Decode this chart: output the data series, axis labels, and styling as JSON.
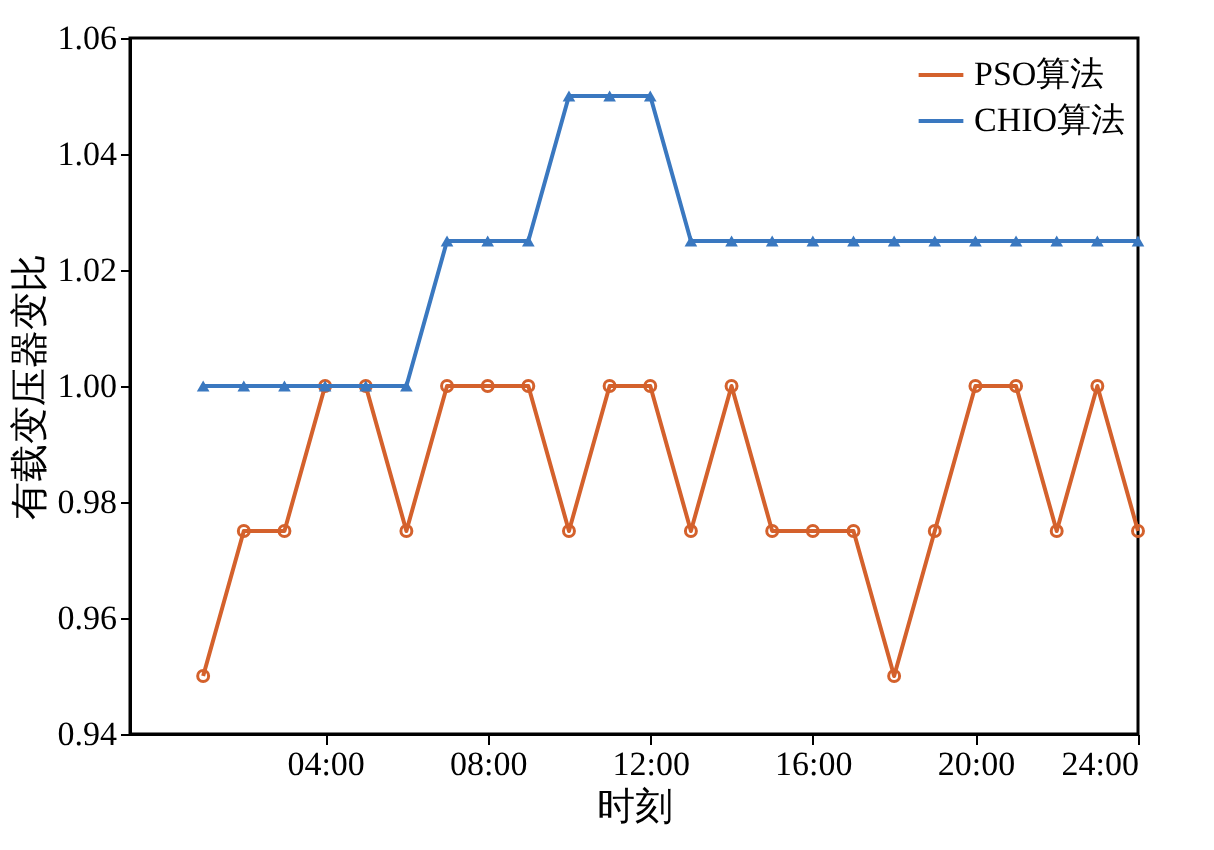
{
  "chart_data": {
    "type": "line",
    "xlabel": "时刻",
    "ylabel": "有载变压器变比",
    "x": [
      1,
      2,
      3,
      4,
      5,
      6,
      7,
      8,
      9,
      10,
      11,
      12,
      13,
      14,
      15,
      16,
      17,
      18,
      19,
      20,
      21,
      22,
      23,
      24
    ],
    "xlim": [
      -0.8,
      24
    ],
    "xticks": [
      {
        "value": 4,
        "label": "04:00"
      },
      {
        "value": 8,
        "label": "08:00"
      },
      {
        "value": 12,
        "label": "12:00"
      },
      {
        "value": 16,
        "label": "16:00"
      },
      {
        "value": 20,
        "label": "20:00"
      },
      {
        "value": 24,
        "label": "24:00"
      }
    ],
    "ylim": [
      0.94,
      1.06
    ],
    "yticks": [
      0.94,
      0.96,
      0.98,
      {
        "value": 1,
        "label": "1.00"
      },
      1.02,
      1.04,
      1.06
    ],
    "grid": false,
    "legend": "top right",
    "series": [
      {
        "name": "PSO算法",
        "color": "#d4612c",
        "marker": "circle",
        "values": [
          0.95,
          0.975,
          0.975,
          1.0,
          1.0,
          0.975,
          1.0,
          1.0,
          1.0,
          0.975,
          1.0,
          1.0,
          0.975,
          1.0,
          0.975,
          0.975,
          0.975,
          0.95,
          0.975,
          1.0,
          1.0,
          0.975,
          1.0,
          0.975
        ]
      },
      {
        "name": "CHIO算法",
        "color": "#3a78c0",
        "marker": "triangle",
        "values": [
          1.0,
          1.0,
          1.0,
          1.0,
          1.0,
          1.0,
          1.025,
          1.025,
          1.025,
          1.05,
          1.05,
          1.05,
          1.025,
          1.025,
          1.025,
          1.025,
          1.025,
          1.025,
          1.025,
          1.025,
          1.025,
          1.025,
          1.025,
          1.025
        ]
      }
    ]
  }
}
